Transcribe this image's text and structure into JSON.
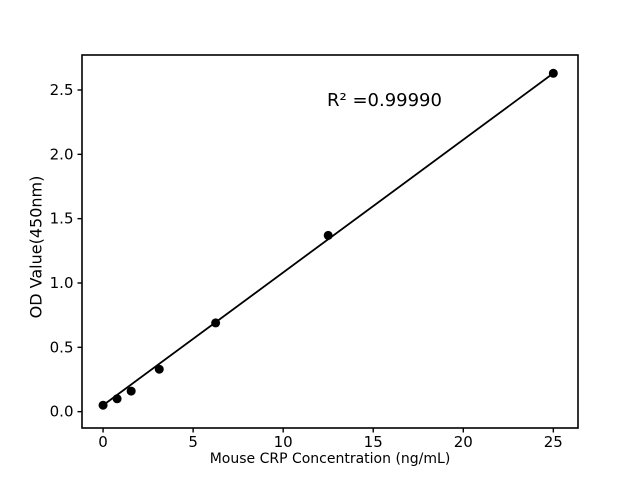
{
  "figure": {
    "background_color": "#ffffff"
  },
  "chart_data": {
    "type": "scatter",
    "title": "",
    "xlabel": "Mouse CRP Concentration (ng/mL)",
    "ylabel": "OD Value(450nm)",
    "annotation": "R² =0.99990",
    "r_squared": "0.99990",
    "x": [
      0,
      0.78,
      1.56,
      3.12,
      6.25,
      12.5,
      25
    ],
    "y": [
      0.05,
      0.1,
      0.16,
      0.33,
      0.69,
      1.37,
      2.63
    ],
    "trendline": {
      "x": [
        0,
        25
      ],
      "y": [
        0.05,
        2.63
      ]
    },
    "xticks": [
      "0",
      "5",
      "10",
      "15",
      "20",
      "25"
    ],
    "yticks": [
      "0.0",
      "0.5",
      "1.0",
      "1.5",
      "2.0",
      "2.5"
    ],
    "xlim": [
      -1.17,
      26.37
    ],
    "ylim": [
      -0.127,
      2.772
    ],
    "grid": false,
    "legend": "none",
    "marker_color": "#000000",
    "line_color": "#000000",
    "axis_color": "#000000"
  }
}
